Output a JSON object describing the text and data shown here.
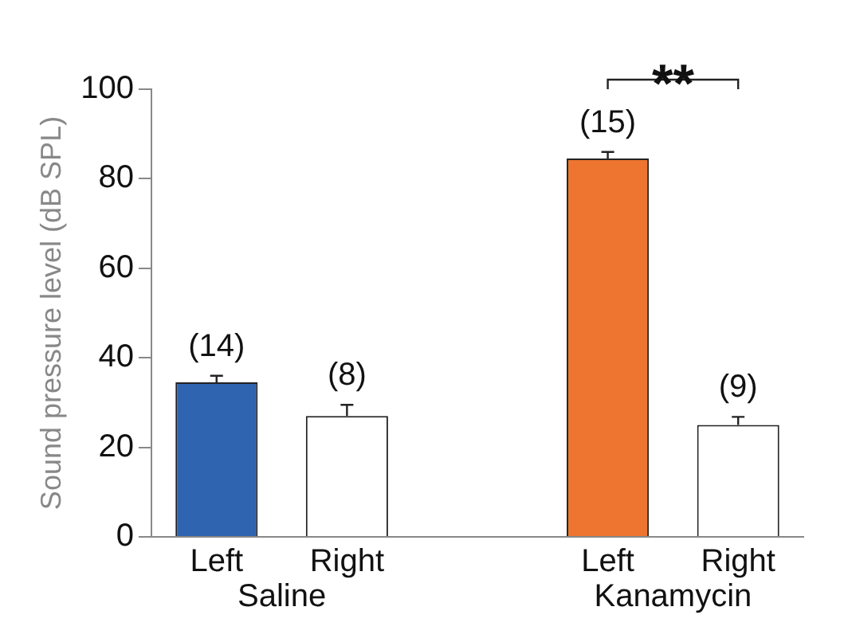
{
  "chart_data": {
    "type": "bar",
    "ylabel": "Sound pressure level (dB SPL)",
    "categories": [
      "Left",
      "Right",
      null,
      "Left",
      "Right"
    ],
    "values": [
      34.5,
      27,
      null,
      84.5,
      25
    ],
    "colors": [
      "#2e64b0",
      "#ffffff",
      "#ffffff",
      "#ed7530",
      "#ffffff"
    ],
    "errors": [
      1.5,
      2.5,
      null,
      1.5,
      1.8
    ],
    "annotations": [
      "(14)",
      "(8)",
      "(15)",
      "(9)",
      "Saline",
      "Kanamycin",
      "**"
    ],
    "ylim": [
      0,
      100
    ],
    "yticks": [
      0,
      20,
      40,
      60,
      80,
      100
    ],
    "grid": false,
    "legend": false
  }
}
